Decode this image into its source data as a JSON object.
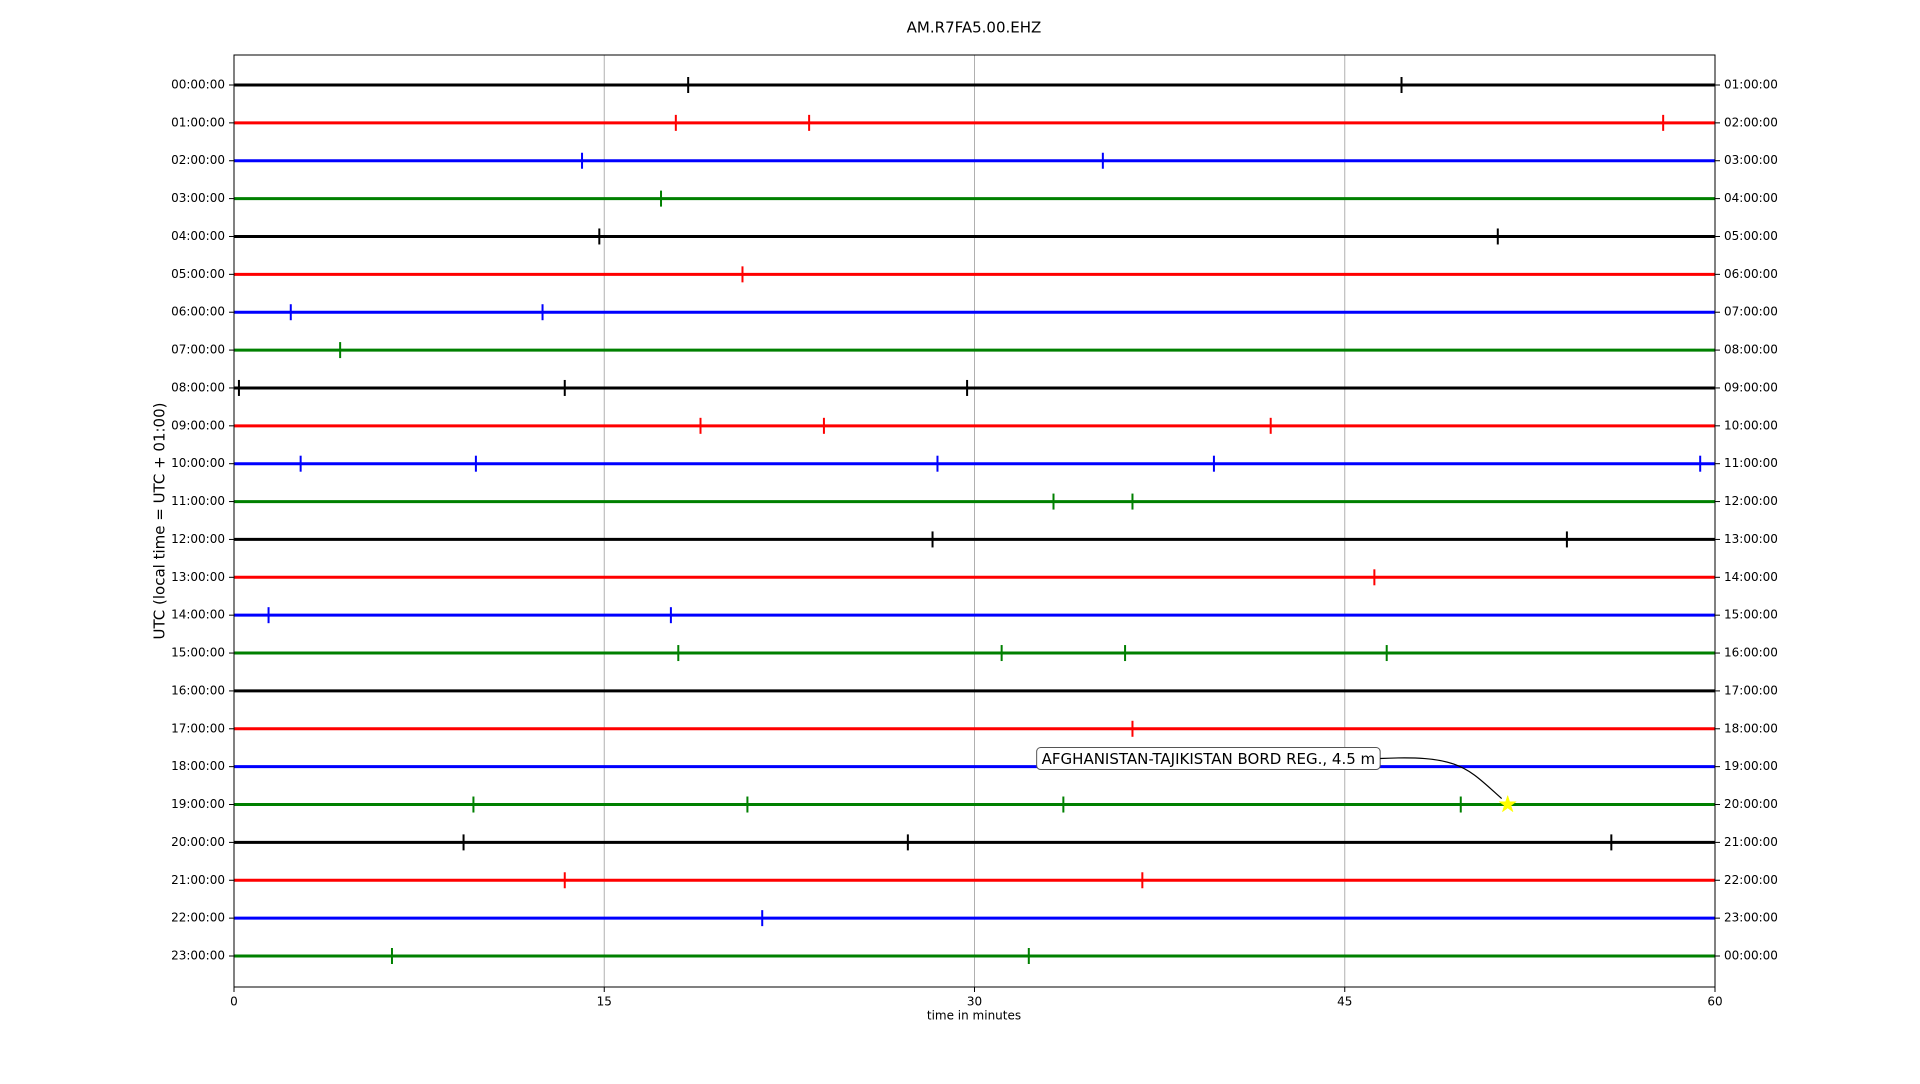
{
  "chart_data": {
    "type": "dayplot",
    "title": "AM.R7FA5.00.EHZ",
    "x_label": "time in minutes",
    "y_label": "UTC (local time = UTC + 01:00)",
    "xlim": [
      0,
      60
    ],
    "xticks": [
      0,
      15,
      30,
      45,
      60
    ],
    "grid": true,
    "rows": [
      {
        "label": "00:00:00",
        "right_label": "01:00:00",
        "color": "#000000",
        "events": [
          18.4,
          47.3
        ]
      },
      {
        "label": "01:00:00",
        "right_label": "02:00:00",
        "color": "#ff0000",
        "events": [
          17.9,
          23.3,
          57.9
        ]
      },
      {
        "label": "02:00:00",
        "right_label": "03:00:00",
        "color": "#0000ff",
        "events": [
          14.1,
          35.2
        ]
      },
      {
        "label": "03:00:00",
        "right_label": "04:00:00",
        "color": "#008000",
        "events": [
          17.3
        ]
      },
      {
        "label": "04:00:00",
        "right_label": "05:00:00",
        "color": "#000000",
        "events": [
          14.8,
          51.2
        ]
      },
      {
        "label": "05:00:00",
        "right_label": "06:00:00",
        "color": "#ff0000",
        "events": [
          20.6
        ]
      },
      {
        "label": "06:00:00",
        "right_label": "07:00:00",
        "color": "#0000ff",
        "events": [
          2.3,
          12.5
        ]
      },
      {
        "label": "07:00:00",
        "right_label": "08:00:00",
        "color": "#008000",
        "events": [
          4.3
        ]
      },
      {
        "label": "08:00:00",
        "right_label": "09:00:00",
        "color": "#000000",
        "events": [
          0.2,
          13.4,
          29.7
        ]
      },
      {
        "label": "09:00:00",
        "right_label": "10:00:00",
        "color": "#ff0000",
        "events": [
          18.9,
          23.9,
          42.0
        ]
      },
      {
        "label": "10:00:00",
        "right_label": "11:00:00",
        "color": "#0000ff",
        "events": [
          2.7,
          9.8,
          28.5,
          39.7,
          59.4
        ]
      },
      {
        "label": "11:00:00",
        "right_label": "12:00:00",
        "color": "#008000",
        "events": [
          33.2,
          36.4
        ]
      },
      {
        "label": "12:00:00",
        "right_label": "13:00:00",
        "color": "#000000",
        "events": [
          28.3,
          54.0
        ]
      },
      {
        "label": "13:00:00",
        "right_label": "14:00:00",
        "color": "#ff0000",
        "events": [
          46.2
        ]
      },
      {
        "label": "14:00:00",
        "right_label": "15:00:00",
        "color": "#0000ff",
        "events": [
          1.4,
          17.7
        ]
      },
      {
        "label": "15:00:00",
        "right_label": "16:00:00",
        "color": "#008000",
        "events": [
          18.0,
          31.1,
          36.1,
          46.7
        ]
      },
      {
        "label": "16:00:00",
        "right_label": "17:00:00",
        "color": "#000000",
        "events": []
      },
      {
        "label": "17:00:00",
        "right_label": "18:00:00",
        "color": "#ff0000",
        "events": [
          36.4
        ]
      },
      {
        "label": "18:00:00",
        "right_label": "19:00:00",
        "color": "#0000ff",
        "events": []
      },
      {
        "label": "19:00:00",
        "right_label": "20:00:00",
        "color": "#008000",
        "events": [
          9.7,
          20.8,
          33.6,
          49.7
        ]
      },
      {
        "label": "20:00:00",
        "right_label": "21:00:00",
        "color": "#000000",
        "events": [
          9.3,
          27.3,
          55.8
        ]
      },
      {
        "label": "21:00:00",
        "right_label": "22:00:00",
        "color": "#ff0000",
        "events": [
          13.4,
          36.8
        ]
      },
      {
        "label": "22:00:00",
        "right_label": "23:00:00",
        "color": "#0000ff",
        "events": [
          21.4
        ]
      },
      {
        "label": "23:00:00",
        "right_label": "00:00:00",
        "color": "#008000",
        "events": [
          6.4,
          32.2
        ]
      }
    ],
    "annotation": {
      "text": "AFGHANISTAN-TAJIKISTAN BORD REG., 4.5 m",
      "row": 19,
      "x": 51.6,
      "color": "#ffff00"
    }
  }
}
